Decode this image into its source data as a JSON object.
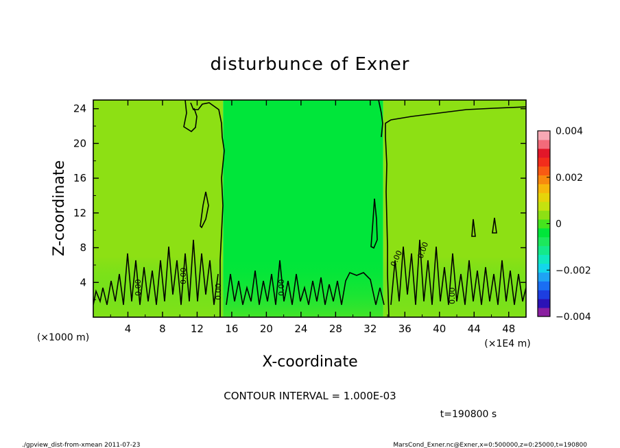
{
  "chart_data": {
    "type": "heatmap",
    "title": "disturbunce of Exner",
    "xlabel": "X-coordinate",
    "ylabel": "Z-coordinate",
    "x_unit": "(×1E4 m)",
    "y_unit": "(×1000 m)",
    "xlim": [
      0,
      50
    ],
    "ylim": [
      0,
      25
    ],
    "x_ticks": [
      "4",
      "8",
      "12",
      "16",
      "20",
      "24",
      "28",
      "32",
      "36",
      "40",
      "44",
      "48"
    ],
    "y_ticks": [
      "4",
      "8",
      "12",
      "16",
      "20",
      "24"
    ],
    "colorbar": {
      "range": [
        -0.004,
        0.004
      ],
      "tick_labels": [
        "0.004",
        "0.002",
        "0",
        "−0.002",
        "−0.004"
      ],
      "tick_values": [
        0.004,
        0.002,
        0,
        -0.002,
        -0.004
      ],
      "colors": [
        "#8a1fa0",
        "#2b12b6",
        "#1d3ee0",
        "#1a6ef2",
        "#1fa3f3",
        "#13d6ea",
        "#10e8bf",
        "#14e98a",
        "#1ce85c",
        "#00e63a",
        "#45e41d",
        "#8de014",
        "#c4e20f",
        "#e6d40a",
        "#f7b70b",
        "#f88a0e",
        "#f85a13",
        "#f22d1b",
        "#e21729",
        "#f36a7a",
        "#f7a8b4"
      ]
    },
    "contour_labels": [
      "0.00",
      "0.00",
      "0.00",
      "0.00",
      "0.00",
      "0.00",
      "0.00"
    ],
    "regions": [
      {
        "x": [
          0,
          15
        ],
        "z": [
          0,
          25
        ],
        "value": 0.0005
      },
      {
        "x": [
          15,
          33.5
        ],
        "z": [
          0,
          25
        ],
        "value": -0.0003
      },
      {
        "x": [
          33.5,
          50
        ],
        "z": [
          0,
          25
        ],
        "value": 0.0005
      }
    ]
  },
  "annotations": {
    "contour_interval": "CONTOUR INTERVAL = 1.000E-03",
    "time": "t=190800 s",
    "footer_left": "./gpview_dist-from-xmean  2011-07-23",
    "footer_right": "MarsCond_Exner.nc@Exner,x=0:500000,z=0:25000,t=190800"
  }
}
